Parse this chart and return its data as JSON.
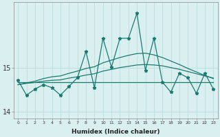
{
  "xlabel": "Humidex (Indice chaleur)",
  "x": [
    0,
    1,
    2,
    3,
    4,
    5,
    6,
    7,
    8,
    9,
    10,
    11,
    12,
    13,
    14,
    15,
    16,
    17,
    18,
    19,
    20,
    21,
    22,
    23
  ],
  "y_main": [
    14.72,
    14.38,
    14.52,
    14.62,
    14.55,
    14.38,
    14.58,
    14.78,
    15.38,
    14.55,
    15.68,
    15.02,
    15.68,
    15.68,
    16.25,
    14.95,
    15.68,
    14.68,
    14.45,
    14.88,
    14.78,
    14.42,
    14.88,
    14.52
  ],
  "y_trend_flat": [
    14.68,
    14.68,
    14.68,
    14.68,
    14.68,
    14.68,
    14.68,
    14.68,
    14.68,
    14.68,
    14.68,
    14.68,
    14.68,
    14.68,
    14.68,
    14.68,
    14.68,
    14.68,
    14.68,
    14.68,
    14.68,
    14.68,
    14.68,
    14.68
  ],
  "y_trend_mid": [
    14.62,
    14.65,
    14.67,
    14.7,
    14.72,
    14.73,
    14.77,
    14.8,
    14.84,
    14.87,
    14.93,
    14.97,
    15.01,
    15.04,
    15.07,
    15.08,
    15.07,
    15.05,
    15.01,
    14.97,
    14.92,
    14.87,
    14.82,
    14.77
  ],
  "y_trend_high": [
    14.62,
    14.66,
    14.7,
    14.76,
    14.8,
    14.82,
    14.88,
    14.93,
    14.99,
    15.03,
    15.12,
    15.18,
    15.24,
    15.29,
    15.33,
    15.34,
    15.3,
    15.24,
    15.16,
    15.08,
    14.99,
    14.91,
    14.83,
    14.76
  ],
  "bg_color": "#daf0f0",
  "grid_color": "#b8d8d8",
  "line_color": "#1a7a6e",
  "ylim": [
    13.85,
    16.5
  ],
  "yticks": [
    14,
    15
  ],
  "xticks": [
    0,
    1,
    2,
    3,
    4,
    5,
    6,
    7,
    8,
    9,
    10,
    11,
    12,
    13,
    14,
    15,
    16,
    17,
    18,
    19,
    20,
    21,
    22,
    23
  ]
}
